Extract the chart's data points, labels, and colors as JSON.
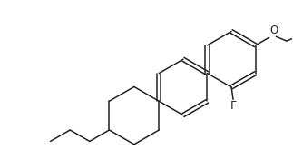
{
  "background_color": "#ffffff",
  "line_color": "#222222",
  "line_width": 1.1,
  "font_size": 8.5,
  "label_color": "#222222",
  "figsize": [
    3.23,
    1.65
  ],
  "dpi": 100
}
